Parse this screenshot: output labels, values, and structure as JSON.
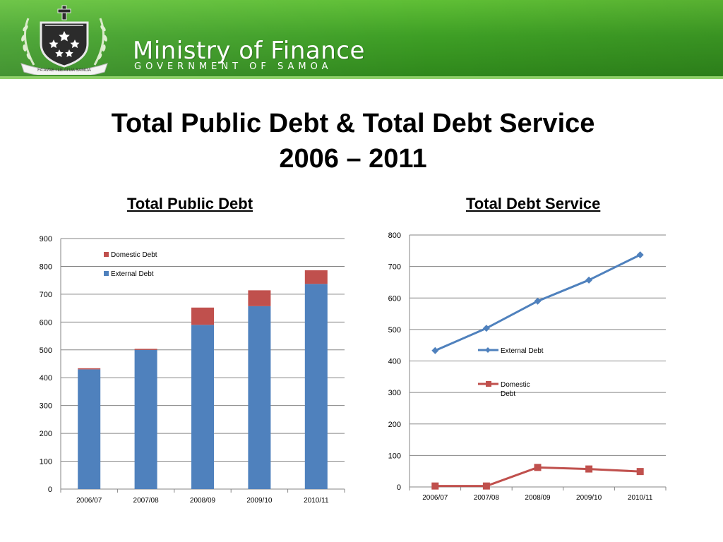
{
  "header": {
    "org_name": "Ministry of Finance",
    "org_sub": "GOVERNMENT OF SAMOA",
    "motto": "FA'AVAE I LE ATUA SAMOA",
    "colors": {
      "banner": "#3e9f25",
      "banner_light": "#5fbf35"
    },
    "logo_icon": "samoa-coat-of-arms-icon"
  },
  "slide": {
    "title_line1": "Total Public Debt & Total Debt Service",
    "title_line2": "2006 – 2011"
  },
  "chart_data": [
    {
      "type": "bar",
      "stacked": true,
      "title": "Total Public Debt",
      "categories": [
        "2006/07",
        "2007/08",
        "2008/09",
        "2009/10",
        "2010/11"
      ],
      "series": [
        {
          "name": "External Debt",
          "color": "#4f81bd",
          "values": [
            430,
            500,
            590,
            657,
            737
          ]
        },
        {
          "name": "Domestic Debt",
          "color": "#c0504d",
          "values": [
            4,
            4,
            62,
            57,
            49
          ]
        }
      ],
      "ylim": [
        0,
        900
      ],
      "yticks": [
        0,
        100,
        200,
        300,
        400,
        500,
        600,
        700,
        800,
        900
      ],
      "grid": true,
      "legend": "top-left-inside"
    },
    {
      "type": "line",
      "title": "Total Debt Service",
      "categories": [
        "2006/07",
        "2007/08",
        "2008/09",
        "2009/10",
        "2010/11"
      ],
      "series": [
        {
          "name": "External Debt",
          "color": "#4f81bd",
          "marker": "diamond",
          "values": [
            433,
            504,
            590,
            657,
            737
          ]
        },
        {
          "name": "Domestic Debt",
          "color": "#c0504d",
          "marker": "square",
          "values": [
            3,
            3,
            62,
            57,
            49
          ]
        }
      ],
      "ylim": [
        0,
        800
      ],
      "yticks": [
        0,
        100,
        200,
        300,
        400,
        500,
        600,
        700,
        800
      ],
      "grid": true,
      "legend": "center-inside"
    }
  ]
}
